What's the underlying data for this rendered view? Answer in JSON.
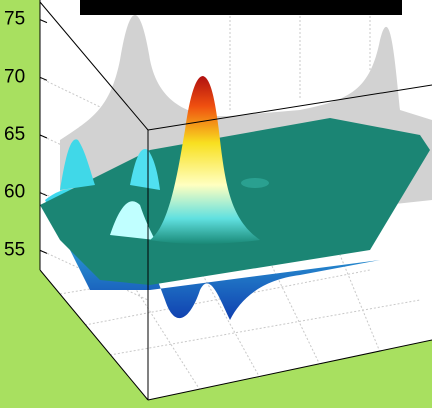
{
  "chart_data": {
    "type": "surface",
    "zlim": [
      53.3,
      76.7
    ],
    "zticks": [
      55,
      60,
      65,
      70,
      75
    ]
  }
}
